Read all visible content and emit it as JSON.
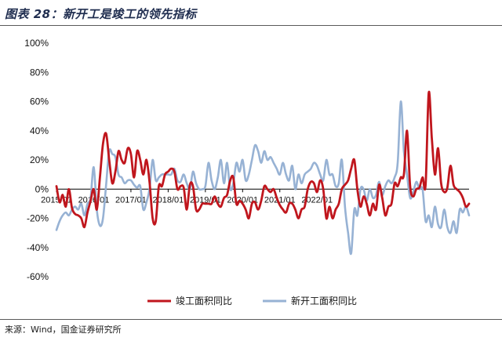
{
  "header": {
    "title": "图表 28：新开工是竣工的领先指标"
  },
  "footer": {
    "source": "来源：Wind，国金证券研究所"
  },
  "chart_data": {
    "type": "line",
    "title": "图表 28：新开工是竣工的领先指标",
    "xlabel": "",
    "ylabel": "",
    "ylim": [
      -60,
      100
    ],
    "yticks": [
      100,
      80,
      60,
      40,
      20,
      0,
      -20,
      -40,
      -60
    ],
    "ytick_labels": [
      "100%",
      "80%",
      "60%",
      "40%",
      "20%",
      "0%",
      "-20%",
      "-40%",
      "-60%"
    ],
    "x_start": "2015-01",
    "x_end": "2022-06",
    "xtick_labels": [
      "2015/01",
      "2016/01",
      "2017/01",
      "2018/01",
      "2019/01",
      "2020/01",
      "2021/01",
      "2022/01"
    ],
    "legend_position": "bottom",
    "grid": false,
    "series": [
      {
        "name": "竣工面积同比",
        "color": "#c0161d",
        "values": [
          2,
          -9,
          -4,
          -12,
          0,
          -13,
          -17,
          -18,
          -20,
          -26,
          -16,
          -8,
          0,
          -14,
          8,
          31,
          38,
          20,
          4,
          12,
          26,
          20,
          18,
          28,
          24,
          8,
          26,
          20,
          10,
          20,
          5,
          -20,
          -22,
          2,
          2,
          10,
          12,
          14,
          12,
          0,
          2,
          1,
          -14,
          3,
          2,
          -14,
          -14,
          -10,
          -10,
          -10,
          -10,
          -5,
          -10,
          -12,
          -6,
          -4,
          6,
          8,
          -10,
          -8,
          -10,
          -14,
          -20,
          -10,
          -9,
          -14,
          -8,
          2,
          0,
          -2,
          0,
          -6,
          -11,
          -14,
          -16,
          -10,
          -10,
          -14,
          -20,
          -14,
          -12,
          0,
          5,
          4,
          -2,
          6,
          0,
          -20,
          -12,
          -20,
          -14,
          -10,
          0,
          3,
          6,
          14,
          20,
          0,
          -12,
          -5,
          -10,
          -18,
          -10,
          -14,
          3,
          -6,
          -18,
          -12,
          -10,
          4,
          2,
          8,
          10,
          40,
          2,
          -5,
          0,
          1,
          8,
          3,
          66,
          35,
          10,
          28,
          4,
          -2,
          1,
          16,
          3,
          0,
          -2,
          -6,
          -12,
          -10
        ]
      },
      {
        "name": "新开工面积同比",
        "color": "#97b2d4",
        "values": [
          -28,
          -22,
          -18,
          -16,
          -18,
          -14,
          -12,
          -14,
          -10,
          -18,
          -10,
          -6,
          15,
          -14,
          -25,
          -20,
          3,
          26,
          24,
          22,
          10,
          8,
          4,
          6,
          6,
          3,
          1,
          2,
          -14,
          -9,
          0,
          20,
          6,
          8,
          10,
          10,
          10,
          10,
          14,
          6,
          5,
          10,
          4,
          0,
          12,
          4,
          0,
          0,
          2,
          18,
          6,
          0,
          8,
          20,
          4,
          18,
          0,
          4,
          18,
          12,
          20,
          6,
          10,
          20,
          30,
          26,
          18,
          26,
          20,
          22,
          18,
          14,
          10,
          18,
          10,
          6,
          16,
          0,
          10,
          4,
          10,
          12,
          14,
          18,
          16,
          10,
          6,
          20,
          10,
          10,
          2,
          4,
          20,
          -12,
          -30,
          -44,
          -14,
          -18,
          0,
          0,
          -8,
          0,
          -6,
          -4,
          5,
          -4,
          2,
          6,
          4,
          8,
          18,
          60,
          26,
          10,
          -6,
          -2,
          5,
          0,
          0,
          -22,
          -18,
          -26,
          -12,
          -24,
          -26,
          -14,
          -26,
          -30,
          -22,
          -30,
          -14,
          -16,
          -12,
          -18
        ]
      }
    ]
  }
}
